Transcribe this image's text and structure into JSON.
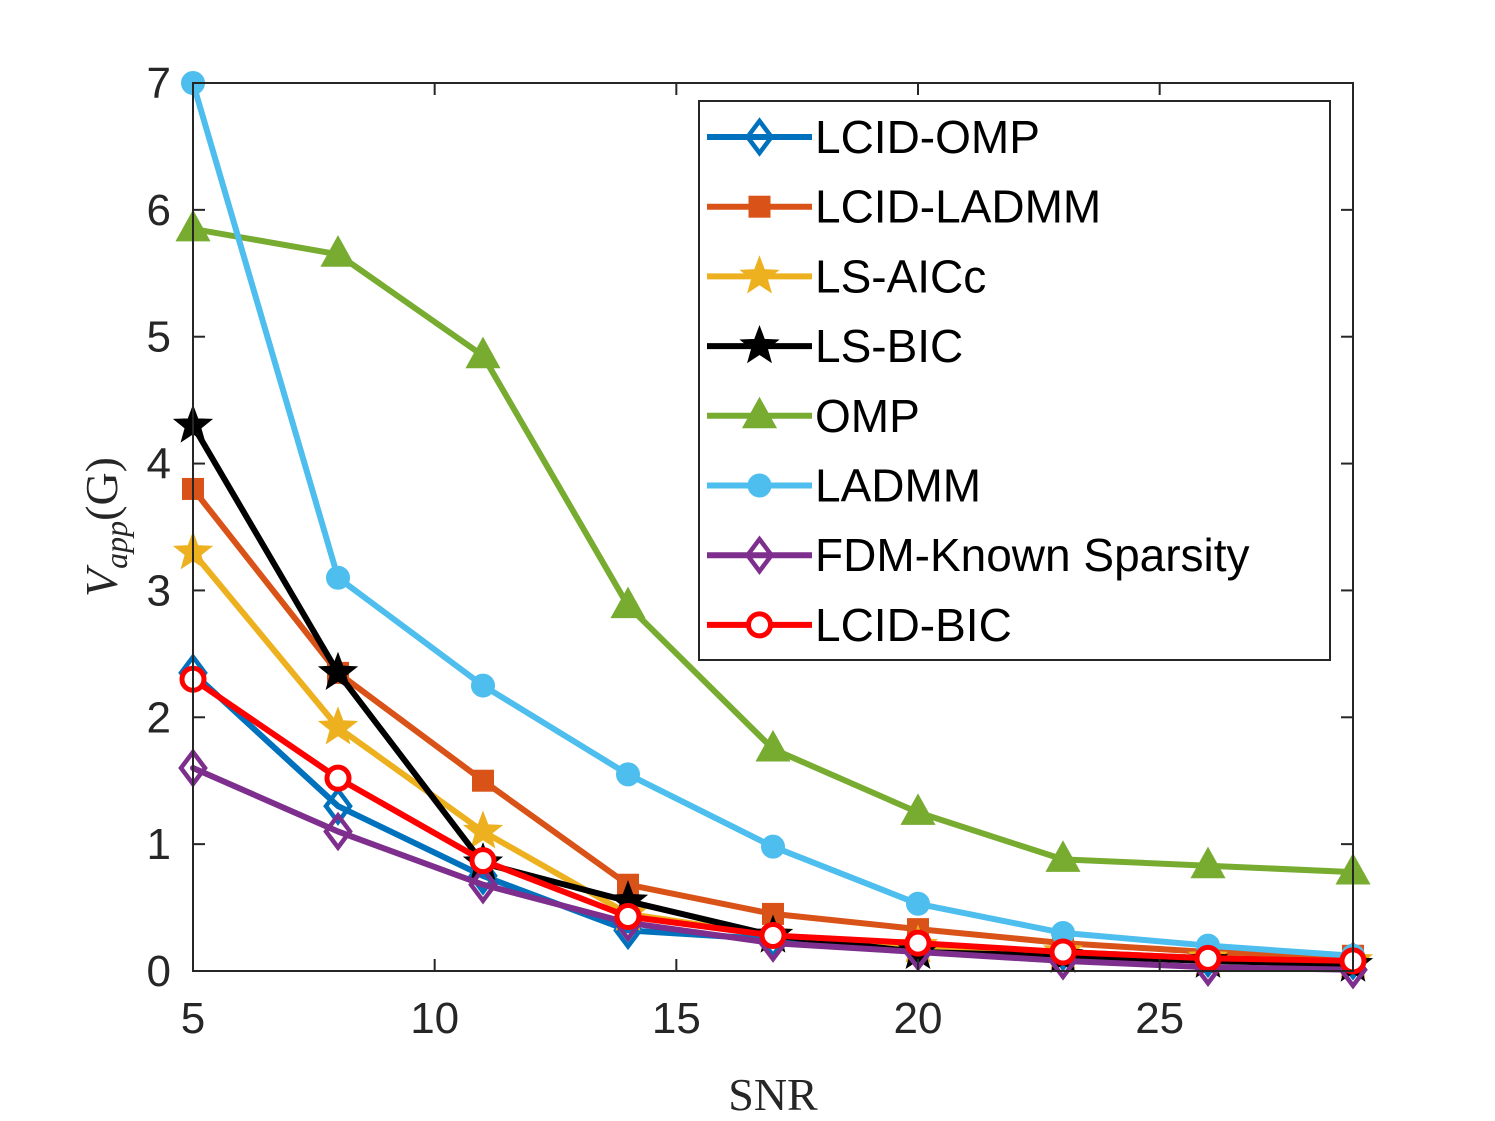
{
  "chart_data": {
    "type": "line",
    "title": "",
    "xlabel": "SNR",
    "ylabel": {
      "base": "V",
      "subscript": "app",
      "argument": "(G)"
    },
    "xlim": [
      5,
      29
    ],
    "ylim": [
      0,
      7
    ],
    "xticks": [
      5,
      10,
      15,
      20,
      25
    ],
    "yticks": [
      0,
      1,
      2,
      3,
      4,
      5,
      6,
      7
    ],
    "grid": false,
    "legend_position": "top-right",
    "x": [
      5,
      8,
      11,
      14,
      17,
      20,
      23,
      26,
      29
    ],
    "series": [
      {
        "name": "LCID-OMP",
        "color": "#0072BD",
        "marker": "diamond",
        "values": [
          2.35,
          1.3,
          0.75,
          0.32,
          0.25,
          0.2,
          0.15,
          0.1,
          0.08
        ]
      },
      {
        "name": "LCID-LADMM",
        "color": "#D95319",
        "marker": "square",
        "values": [
          3.8,
          2.35,
          1.5,
          0.68,
          0.45,
          0.33,
          0.22,
          0.15,
          0.12
        ]
      },
      {
        "name": "LS-AICc",
        "color": "#EDB120",
        "marker": "star",
        "values": [
          3.3,
          1.92,
          1.1,
          0.45,
          0.28,
          0.2,
          0.15,
          0.1,
          0.08
        ]
      },
      {
        "name": "LS-BIC",
        "color": "#000000",
        "marker": "star",
        "values": [
          4.3,
          2.35,
          0.85,
          0.55,
          0.28,
          0.15,
          0.12,
          0.08,
          0.05
        ]
      },
      {
        "name": "OMP",
        "color": "#77AC30",
        "marker": "triangle",
        "values": [
          5.85,
          5.65,
          4.85,
          2.88,
          1.75,
          1.25,
          0.88,
          0.83,
          0.78
        ]
      },
      {
        "name": "LADMM",
        "color": "#4DBEEE",
        "marker": "circle-filled",
        "values": [
          7.0,
          3.1,
          2.25,
          1.55,
          0.98,
          0.53,
          0.3,
          0.2,
          0.12
        ]
      },
      {
        "name": "FDM-Known Sparsity",
        "color": "#7E2F8E",
        "marker": "diamond",
        "values": [
          1.6,
          1.1,
          0.68,
          0.38,
          0.22,
          0.15,
          0.08,
          0.03,
          0.01
        ]
      },
      {
        "name": "LCID-BIC",
        "color": "#FF0000",
        "marker": "circle",
        "values": [
          2.3,
          1.52,
          0.87,
          0.43,
          0.28,
          0.22,
          0.15,
          0.1,
          0.08
        ]
      }
    ]
  }
}
